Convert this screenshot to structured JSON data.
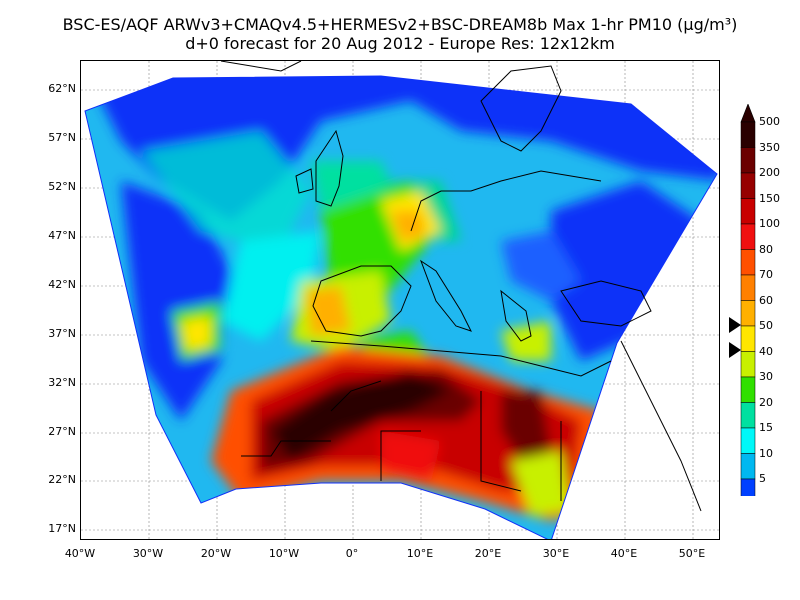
{
  "title_line1": "BSC-ES/AQF ARWv3+CMAQv4.5+HERMESv2+BSC-DREAM8b Max 1-hr PM10 (µg/m³)",
  "title_line2": "d+0 forecast for 20 Aug 2012 - Europe Res: 12x12km",
  "lat_labels": [
    "62°N",
    "57°N",
    "52°N",
    "47°N",
    "42°N",
    "37°N",
    "32°N",
    "27°N",
    "22°N",
    "17°N"
  ],
  "lon_labels": [
    "40°W",
    "30°W",
    "20°W",
    "10°W",
    "0°",
    "10°E",
    "20°E",
    "30°E",
    "40°E",
    "50°E"
  ],
  "colorbar": {
    "labels": [
      "500",
      "350",
      "200",
      "150",
      "100",
      "80",
      "70",
      "60",
      "50",
      "40",
      "30",
      "20",
      "15",
      "10",
      "5"
    ],
    "colors": [
      "#2a0000",
      "#6b0000",
      "#960000",
      "#c80000",
      "#f01010",
      "#ff5000",
      "#ff8000",
      "#ffb000",
      "#ffe600",
      "#c8f000",
      "#30e000",
      "#00e0a0",
      "#00f8f8",
      "#00b8f0",
      "#0040ff"
    ]
  },
  "colors": {
    "ocean_low": "#1030f8",
    "background_field": "#20b8f0",
    "dust_core": "#3a0000"
  }
}
